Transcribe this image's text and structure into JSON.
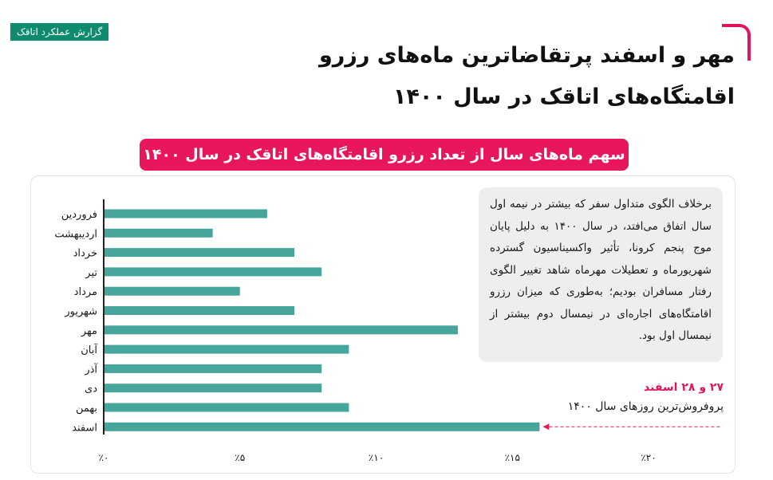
{
  "header": {
    "badge": "گزارش عملکرد اتاقک",
    "title": "مهر و اسفند پرتقاضاترین ماه‌های رزرو اقامتگاه‌های اتاقک در سال ۱۴۰۰"
  },
  "colors": {
    "bar": "#46a69b",
    "accent": "#e8175d",
    "badge": "#0e8a6e",
    "axis": "#222222"
  },
  "note": "برخلاف الگوی متداول سفر که بیشتر در نیمه اول سال اتفاق می‌افتد، در سال ۱۴۰۰ به دلیل پایان موج پنجم کرونا، تأثیر واکسیناسیون گسترده شهریورماه و تعطیلات مهرماه شاهد تغییر الگوی رفتار مسافران بودیم؛ به‌طوری که میزان رزرو اقامتگاه‌های اجاره‌ای در نیمسال دوم بیشتر از نیمسال اول بود.",
  "annotation": {
    "date": "۲۷ و ۲۸ اسفند",
    "caption": "پروفروش‌ترین روزهای سال ۱۴۰۰"
  },
  "chart_data": {
    "type": "bar",
    "orientation": "horizontal",
    "title": "سهم ماه‌های سال از تعداد رزرو اقامتگاه‌های اتاقک در سال ۱۴۰۰",
    "categories": [
      "فروردین",
      "اردیبهشت",
      "خرداد",
      "تیر",
      "مرداد",
      "شهریور",
      "مهر",
      "آبان",
      "آذر",
      "دی",
      "بهمن",
      "اسفند"
    ],
    "values": [
      6.0,
      4.0,
      7.0,
      8.0,
      5.0,
      7.0,
      13.0,
      9.0,
      8.0,
      8.0,
      9.0,
      16.0
    ],
    "xlim": [
      0,
      20
    ],
    "ticks": [
      0,
      5,
      10,
      15,
      20
    ],
    "tick_labels": [
      "٪۰",
      "٪۵",
      "٪۱۰",
      "٪۱۵",
      "٪۲۰"
    ],
    "grid": false,
    "legend": "none"
  }
}
